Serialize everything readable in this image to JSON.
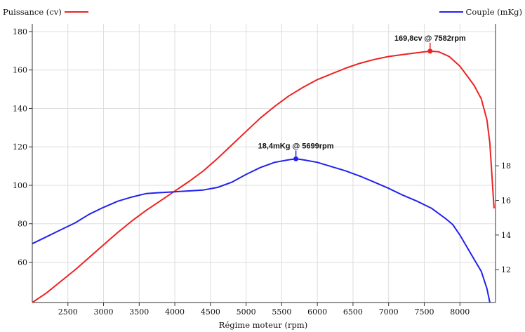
{
  "chart_data": {
    "type": "line",
    "xlabel": "Régime moteur (rpm)",
    "x_ticks": [
      2500,
      3000,
      3500,
      4000,
      4500,
      5000,
      5500,
      6000,
      6500,
      7000,
      7500,
      8000
    ],
    "xlim": [
      2000,
      8500
    ],
    "grid": true,
    "legend": [
      "top-left",
      "top-right"
    ],
    "series": [
      {
        "name": "Puissance (cv)",
        "axis": "left",
        "color": "#ee2222",
        "ylim": [
          39,
          184
        ],
        "y_ticks": [
          60,
          80,
          100,
          120,
          140,
          160,
          180
        ],
        "peak": {
          "x": 7582,
          "y": 169.8,
          "label": "169,8cv @ 7582rpm"
        },
        "points": [
          [
            2000,
            39
          ],
          [
            2200,
            44
          ],
          [
            2400,
            50
          ],
          [
            2600,
            56
          ],
          [
            2800,
            62.5
          ],
          [
            3000,
            69
          ],
          [
            3200,
            75.5
          ],
          [
            3400,
            81.5
          ],
          [
            3600,
            87
          ],
          [
            3800,
            92
          ],
          [
            4000,
            97
          ],
          [
            4200,
            102
          ],
          [
            4400,
            107.5
          ],
          [
            4600,
            114
          ],
          [
            4800,
            121
          ],
          [
            5000,
            128
          ],
          [
            5200,
            135
          ],
          [
            5400,
            141
          ],
          [
            5600,
            146.5
          ],
          [
            5800,
            151
          ],
          [
            6000,
            155
          ],
          [
            6200,
            158
          ],
          [
            6400,
            161
          ],
          [
            6600,
            163.5
          ],
          [
            6800,
            165.5
          ],
          [
            7000,
            167
          ],
          [
            7200,
            168
          ],
          [
            7400,
            169
          ],
          [
            7582,
            169.8
          ],
          [
            7700,
            169.5
          ],
          [
            7850,
            167
          ],
          [
            8000,
            162
          ],
          [
            8100,
            157
          ],
          [
            8200,
            152
          ],
          [
            8300,
            145
          ],
          [
            8380,
            134
          ],
          [
            8420,
            122
          ],
          [
            8450,
            105
          ],
          [
            8470,
            93
          ],
          [
            8480,
            88
          ]
        ]
      },
      {
        "name": "Couple (mKg)",
        "axis": "right",
        "color": "#2222ee",
        "ylim": [
          10.1,
          26.2
        ],
        "y_ticks": [
          12,
          14,
          16,
          18
        ],
        "peak": {
          "x": 5699,
          "y": 18.4,
          "label": "18,4mKg @ 5699rpm"
        },
        "points": [
          [
            2000,
            13.5
          ],
          [
            2200,
            13.9
          ],
          [
            2400,
            14.3
          ],
          [
            2600,
            14.7
          ],
          [
            2800,
            15.2
          ],
          [
            3000,
            15.6
          ],
          [
            3200,
            15.95
          ],
          [
            3400,
            16.2
          ],
          [
            3600,
            16.4
          ],
          [
            3800,
            16.45
          ],
          [
            4000,
            16.5
          ],
          [
            4200,
            16.55
          ],
          [
            4400,
            16.6
          ],
          [
            4600,
            16.75
          ],
          [
            4800,
            17.05
          ],
          [
            5000,
            17.5
          ],
          [
            5200,
            17.9
          ],
          [
            5400,
            18.2
          ],
          [
            5600,
            18.35
          ],
          [
            5699,
            18.4
          ],
          [
            5800,
            18.35
          ],
          [
            6000,
            18.2
          ],
          [
            6200,
            17.95
          ],
          [
            6400,
            17.7
          ],
          [
            6600,
            17.4
          ],
          [
            6800,
            17.05
          ],
          [
            7000,
            16.7
          ],
          [
            7200,
            16.3
          ],
          [
            7400,
            15.95
          ],
          [
            7600,
            15.55
          ],
          [
            7800,
            14.95
          ],
          [
            7900,
            14.6
          ],
          [
            8000,
            14.0
          ],
          [
            8100,
            13.3
          ],
          [
            8200,
            12.6
          ],
          [
            8300,
            11.9
          ],
          [
            8380,
            10.9
          ],
          [
            8420,
            10.1
          ]
        ]
      }
    ]
  }
}
